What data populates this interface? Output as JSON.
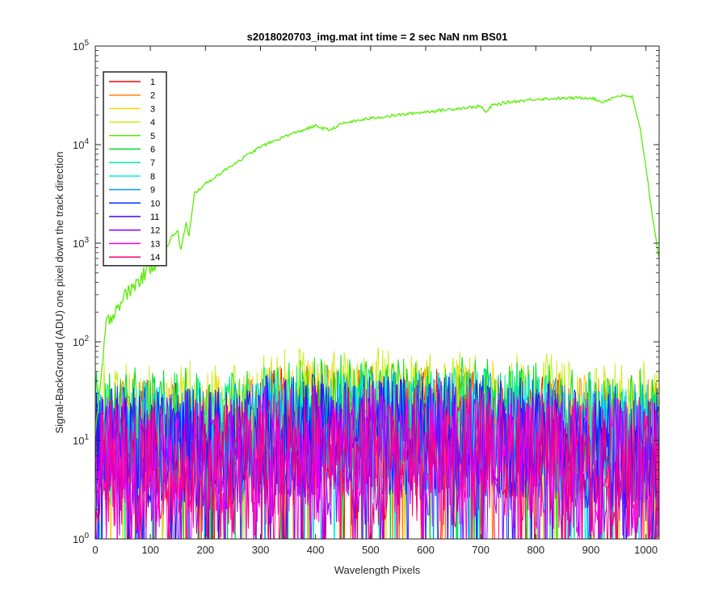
{
  "chart_data": {
    "type": "line",
    "title": "s2018020703_img.mat int time = 2 sec  NaN nm BS01",
    "xlabel": "Wavelength Pixels",
    "ylabel": "Signal-BackGround (ADU) one pixel down the track direction",
    "xlim": [
      0,
      1024
    ],
    "ylim": [
      1,
      100000
    ],
    "yscale": "log",
    "grid": false,
    "legend_position": "top-left",
    "x_ticks": [
      "0",
      "100",
      "200",
      "300",
      "400",
      "500",
      "600",
      "700",
      "800",
      "900",
      "1000"
    ],
    "y_ticks": [
      {
        "value": 1,
        "base": "10",
        "exp": "0"
      },
      {
        "value": 10,
        "base": "10",
        "exp": "1"
      },
      {
        "value": 100,
        "base": "10",
        "exp": "2"
      },
      {
        "value": 1000,
        "base": "10",
        "exp": "3"
      },
      {
        "value": 10000,
        "base": "10",
        "exp": "4"
      },
      {
        "value": 100000,
        "base": "10",
        "exp": "5"
      }
    ],
    "series": [
      {
        "name": "1",
        "color": "#ff0000",
        "noise": {
          "low": 2,
          "high": 42
        }
      },
      {
        "name": "2",
        "color": "#ff7f00",
        "noise": {
          "low": 2,
          "high": 44
        }
      },
      {
        "name": "3",
        "color": "#ffd400",
        "noise": {
          "low": 3,
          "high": 50
        }
      },
      {
        "name": "4",
        "color": "#c8ef1a",
        "noise": {
          "low": 4,
          "high": 65
        }
      },
      {
        "name": "5",
        "color": "#55ee00",
        "x": [
          0,
          10,
          20,
          40,
          60,
          80,
          100,
          120,
          140,
          150,
          155,
          165,
          170,
          180,
          200,
          250,
          300,
          350,
          400,
          425,
          450,
          500,
          550,
          600,
          650,
          700,
          710,
          720,
          750,
          800,
          850,
          900,
          920,
          950,
          975,
          990,
          1000,
          1010,
          1024
        ],
        "y": [
          10,
          40,
          150,
          230,
          320,
          420,
          580,
          700,
          1200,
          1300,
          850,
          1600,
          1150,
          3200,
          4000,
          6300,
          9500,
          12500,
          15500,
          14000,
          16500,
          18500,
          20000,
          21500,
          23000,
          24500,
          21000,
          25000,
          27000,
          29000,
          29500,
          30000,
          27000,
          31500,
          30500,
          14000,
          6000,
          2200,
          700
        ]
      },
      {
        "name": "6",
        "color": "#00dd22",
        "noise": {
          "low": 4,
          "high": 55
        }
      },
      {
        "name": "7",
        "color": "#00ee99",
        "noise": {
          "low": 3,
          "high": 45
        }
      },
      {
        "name": "8",
        "color": "#00eeee",
        "noise": {
          "low": 2,
          "high": 40
        }
      },
      {
        "name": "9",
        "color": "#0099ff",
        "noise": {
          "low": 2,
          "high": 38
        }
      },
      {
        "name": "10",
        "color": "#0033ff",
        "noise": {
          "low": 2,
          "high": 36
        }
      },
      {
        "name": "11",
        "color": "#4400ff",
        "noise": {
          "low": 2,
          "high": 34
        }
      },
      {
        "name": "12",
        "color": "#9900ff",
        "noise": {
          "low": 1,
          "high": 30
        }
      },
      {
        "name": "13",
        "color": "#ff00ee",
        "noise": {
          "low": 1,
          "high": 28
        }
      },
      {
        "name": "14",
        "color": "#ff0077",
        "noise": {
          "low": 1,
          "high": 26
        }
      }
    ]
  }
}
